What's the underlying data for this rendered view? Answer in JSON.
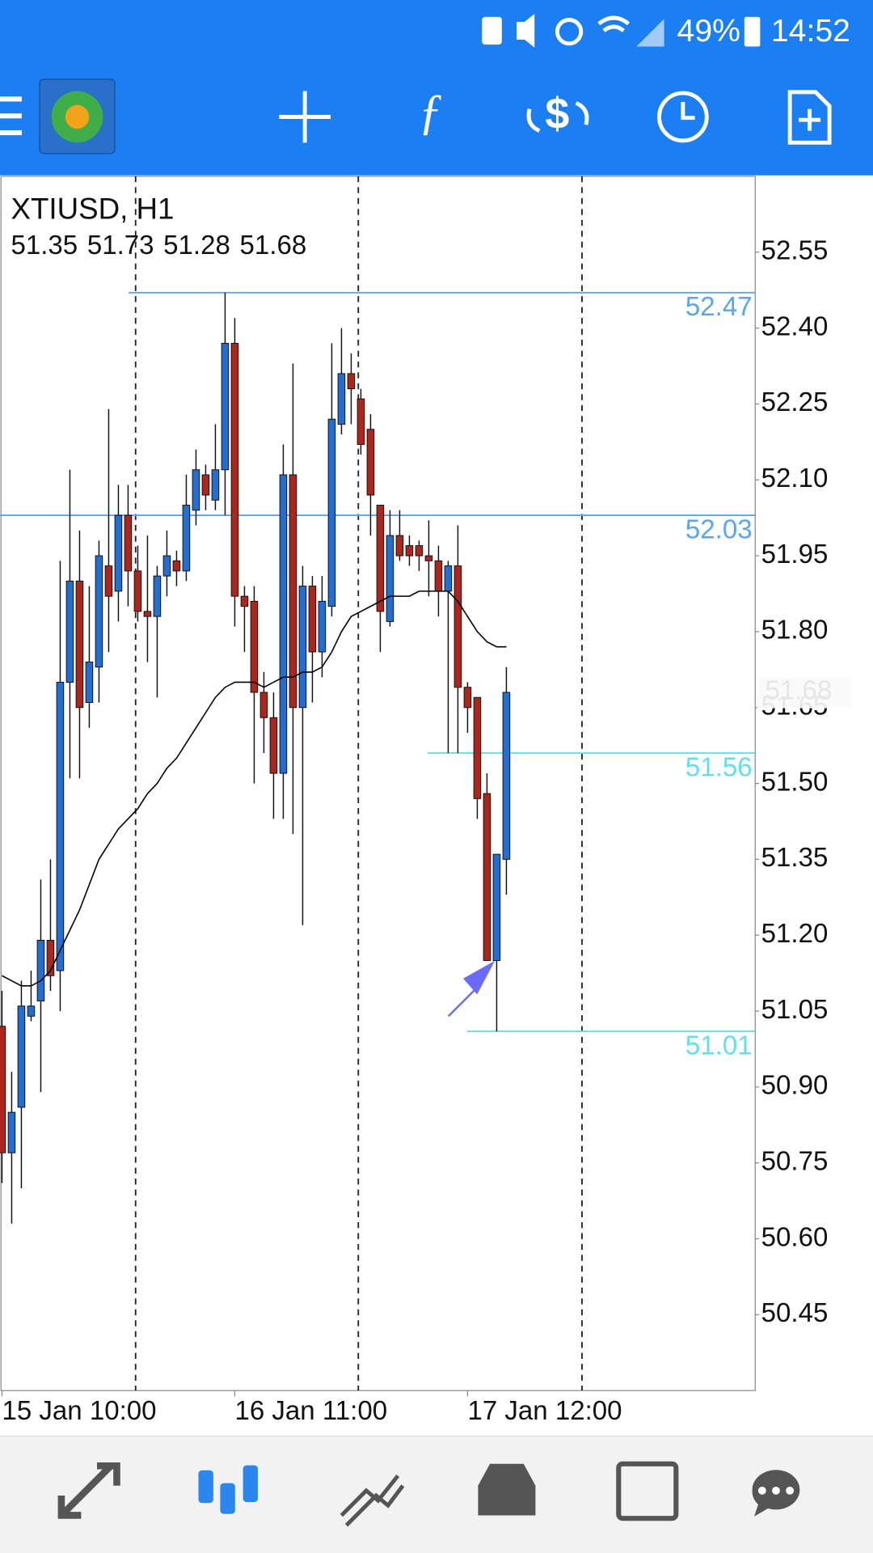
{
  "status_bar": {
    "battery": "49%",
    "time": "14:52"
  },
  "chart_data": {
    "type": "candlestick",
    "title": "XTIUSD, H1",
    "categories": [
      "15 Jan 10:00",
      null,
      null,
      null,
      null,
      null,
      null,
      null,
      null,
      null,
      null,
      null,
      null,
      null,
      null,
      null,
      null,
      null,
      null,
      null,
      null,
      null,
      null,
      null,
      "16 Jan 11:00",
      null,
      null,
      null,
      null,
      null,
      null,
      null,
      null,
      null,
      null,
      null,
      null,
      null,
      null,
      null,
      null,
      null,
      null,
      null,
      null,
      null,
      null,
      null,
      "17 Jan 12:00",
      null,
      null,
      null,
      null
    ],
    "open": [
      51.02,
      50.77,
      50.86,
      51.04,
      51.07,
      51.19,
      51.13,
      51.7,
      51.9,
      51.66,
      51.73,
      51.93,
      51.88,
      52.03,
      51.92,
      51.84,
      51.83,
      51.91,
      51.94,
      51.92,
      52.04,
      52.11,
      52.06,
      52.12,
      52.37,
      51.87,
      51.86,
      51.68,
      51.63,
      51.52,
      52.11,
      51.65,
      51.89,
      51.76,
      51.85,
      52.21,
      52.31,
      52.26,
      52.2,
      52.05,
      51.82,
      51.99,
      51.97,
      51.97,
      51.95,
      51.94,
      51.88,
      51.93,
      51.69,
      51.67,
      51.48,
      51.15,
      51.35
    ],
    "high": [
      51.09,
      50.93,
      51.11,
      51.13,
      51.31,
      51.35,
      51.94,
      52.12,
      52.0,
      51.89,
      51.98,
      52.24,
      52.09,
      52.09,
      51.97,
      51.99,
      51.93,
      52.0,
      51.96,
      52.11,
      52.16,
      52.13,
      52.21,
      52.47,
      52.42,
      51.89,
      51.89,
      51.72,
      51.68,
      52.17,
      52.33,
      51.93,
      51.91,
      51.91,
      52.37,
      52.4,
      52.35,
      52.28,
      52.23,
      52.05,
      52.04,
      52.04,
      51.99,
      51.98,
      52.02,
      51.97,
      51.94,
      52.01,
      51.7,
      51.67,
      51.52,
      51.36,
      51.73
    ],
    "low": [
      50.71,
      50.63,
      50.7,
      51.03,
      50.89,
      51.09,
      51.05,
      51.51,
      51.51,
      51.61,
      51.66,
      51.76,
      51.82,
      51.85,
      51.82,
      51.74,
      51.67,
      51.87,
      51.89,
      51.9,
      52.01,
      52.04,
      52.04,
      52.03,
      51.81,
      51.76,
      51.5,
      51.56,
      51.43,
      51.43,
      51.4,
      51.22,
      51.66,
      51.71,
      51.83,
      52.19,
      52.21,
      52.15,
      51.99,
      51.76,
      51.81,
      51.94,
      51.93,
      51.92,
      51.87,
      51.83,
      51.56,
      51.56,
      51.6,
      51.43,
      51.15,
      51.01,
      51.28
    ],
    "close": [
      50.77,
      50.85,
      51.06,
      51.06,
      51.19,
      51.12,
      51.7,
      51.9,
      51.65,
      51.74,
      51.95,
      51.87,
      52.03,
      51.92,
      51.84,
      51.83,
      51.91,
      51.95,
      51.92,
      52.05,
      52.12,
      52.07,
      52.12,
      52.37,
      51.87,
      51.85,
      51.68,
      51.63,
      51.52,
      52.11,
      51.65,
      51.89,
      51.76,
      51.86,
      52.22,
      52.31,
      52.28,
      52.17,
      52.07,
      51.84,
      51.99,
      51.95,
      51.95,
      51.95,
      51.94,
      51.88,
      51.93,
      51.69,
      51.65,
      51.47,
      51.15,
      51.36,
      51.68
    ],
    "up_color": "#1f6fd6",
    "down_color": "#b0251b",
    "ma": {
      "color": "#000000",
      "values": [
        51.12,
        51.11,
        51.1,
        51.1,
        51.11,
        51.13,
        51.17,
        51.21,
        51.25,
        51.3,
        51.35,
        51.38,
        51.41,
        51.43,
        51.45,
        51.48,
        51.5,
        51.53,
        51.55,
        51.58,
        51.61,
        51.64,
        51.67,
        51.69,
        51.7,
        51.7,
        51.7,
        51.69,
        51.7,
        51.71,
        51.71,
        51.72,
        51.72,
        51.73,
        51.76,
        51.8,
        51.83,
        51.84,
        51.85,
        51.86,
        51.87,
        51.87,
        51.87,
        51.88,
        51.88,
        51.88,
        51.88,
        51.86,
        51.83,
        51.8,
        51.78,
        51.77,
        51.77
      ]
    },
    "levels": [
      {
        "value": 52.47,
        "color": "#5aa6ee"
      },
      {
        "value": 52.03,
        "color": "#5aa6ee"
      },
      {
        "value": 51.56,
        "color": "#5ee0ee"
      },
      {
        "value": 51.01,
        "color": "#5ee0ee"
      }
    ],
    "ylim": [
      50.3,
      52.7
    ],
    "yticks": [
      52.55,
      {
        "value": 52.4,
        "label": "52.40"
      },
      52.25,
      {
        "value": 52.1,
        "label": "52.10"
      },
      51.95,
      {
        "value": 51.8,
        "label": "51.80"
      },
      51.65,
      {
        "value": 51.5,
        "label": "51.50"
      },
      51.35,
      {
        "value": 51.2,
        "label": "51.20"
      },
      51.05,
      {
        "value": 50.9,
        "label": "50.90"
      },
      50.75,
      {
        "value": 50.6,
        "label": "50.60"
      },
      50.45
    ]
  }
}
